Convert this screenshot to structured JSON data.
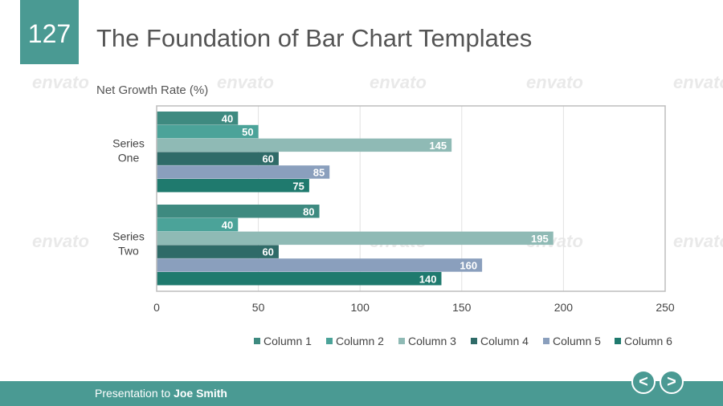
{
  "slide": {
    "number": "127",
    "title": "The Foundation of Bar Chart Templates"
  },
  "footer": {
    "prefix": "Presentation to ",
    "name": "Joe Smith"
  },
  "nav": {
    "prev_icon": "chevron-left-icon",
    "next_icon": "chevron-right-icon",
    "prev_glyph": "<",
    "next_glyph": ">"
  },
  "watermark": {
    "text": "envato"
  },
  "colors": {
    "accent": "#4a9a93",
    "column_1": "#3e8a80",
    "column_2": "#4ba399",
    "column_3": "#8fbab5",
    "column_4": "#2f6b68",
    "column_5": "#8a9fbd",
    "column_6": "#1f7a6e"
  },
  "chart_data": {
    "type": "bar",
    "orientation": "horizontal",
    "title": "Net Growth Rate (%)",
    "categories": [
      "Series One",
      "Series Two"
    ],
    "series": [
      {
        "name": "Column 1",
        "values": [
          40,
          80
        ]
      },
      {
        "name": "Column 2",
        "values": [
          50,
          40
        ]
      },
      {
        "name": "Column 3",
        "values": [
          145,
          195
        ]
      },
      {
        "name": "Column 4",
        "values": [
          60,
          60
        ]
      },
      {
        "name": "Column 5",
        "values": [
          85,
          160
        ]
      },
      {
        "name": "Column 6",
        "values": [
          75,
          140
        ]
      }
    ],
    "xlim": [
      0,
      250
    ],
    "xticks": [
      "0",
      "50",
      "100",
      "150",
      "200",
      "250"
    ],
    "grid": true,
    "legend_position": "bottom-right",
    "data_labels": true
  }
}
